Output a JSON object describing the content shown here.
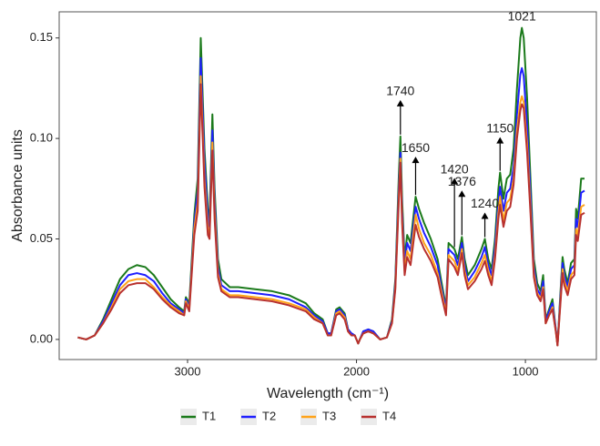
{
  "chart_data": {
    "type": "line",
    "x_label": "Wavelength (cm⁻¹)",
    "y_label": "Absorbance units",
    "x": [
      3650,
      3600,
      3550,
      3500,
      3450,
      3400,
      3350,
      3300,
      3250,
      3200,
      3150,
      3100,
      3050,
      3020,
      3010,
      2990,
      2960,
      2940,
      2922,
      2900,
      2880,
      2870,
      2853,
      2840,
      2820,
      2800,
      2750,
      2700,
      2600,
      2500,
      2400,
      2300,
      2250,
      2200,
      2170,
      2150,
      2120,
      2100,
      2070,
      2050,
      2030,
      2010,
      1990,
      1980,
      1960,
      1930,
      1900,
      1860,
      1820,
      1790,
      1770,
      1750,
      1740,
      1730,
      1715,
      1700,
      1680,
      1650,
      1630,
      1600,
      1560,
      1520,
      1500,
      1470,
      1455,
      1420,
      1400,
      1376,
      1360,
      1340,
      1300,
      1260,
      1240,
      1220,
      1200,
      1180,
      1160,
      1150,
      1130,
      1110,
      1090,
      1070,
      1050,
      1030,
      1021,
      1010,
      990,
      970,
      950,
      930,
      910,
      895,
      880,
      860,
      840,
      820,
      810,
      795,
      780,
      770,
      750,
      730,
      710,
      700,
      690,
      670,
      650
    ],
    "series": [
      {
        "name": "T1",
        "color": "#1b7a1b",
        "values": [
          0.001,
          0,
          0.002,
          0.01,
          0.02,
          0.03,
          0.035,
          0.037,
          0.036,
          0.032,
          0.026,
          0.02,
          0.016,
          0.014,
          0.021,
          0.018,
          0.062,
          0.08,
          0.15,
          0.095,
          0.065,
          0.06,
          0.112,
          0.075,
          0.04,
          0.03,
          0.026,
          0.026,
          0.025,
          0.024,
          0.022,
          0.018,
          0.013,
          0.01,
          0.003,
          0.003,
          0.015,
          0.016,
          0.013,
          0.005,
          0.003,
          0.002,
          -0.002,
          0,
          0.004,
          0.005,
          0.004,
          0,
          0.001,
          0.01,
          0.03,
          0.08,
          0.101,
          0.07,
          0.04,
          0.052,
          0.048,
          0.071,
          0.065,
          0.058,
          0.05,
          0.04,
          0.03,
          0.016,
          0.048,
          0.045,
          0.04,
          0.051,
          0.04,
          0.032,
          0.037,
          0.045,
          0.05,
          0.04,
          0.035,
          0.05,
          0.075,
          0.083,
          0.07,
          0.08,
          0.082,
          0.095,
          0.125,
          0.15,
          0.155,
          0.15,
          0.12,
          0.08,
          0.04,
          0.028,
          0.024,
          0.032,
          0.01,
          0.015,
          0.02,
          0.005,
          -0.003,
          0.02,
          0.041,
          0.035,
          0.028,
          0.038,
          0.04,
          0.065,
          0.06,
          0.08,
          0.08
        ]
      },
      {
        "name": "T2",
        "color": "#1f1fff",
        "values": [
          0.001,
          0,
          0.002,
          0.009,
          0.018,
          0.027,
          0.032,
          0.033,
          0.032,
          0.029,
          0.023,
          0.018,
          0.015,
          0.013,
          0.02,
          0.016,
          0.058,
          0.074,
          0.14,
          0.088,
          0.06,
          0.056,
          0.104,
          0.069,
          0.036,
          0.027,
          0.024,
          0.024,
          0.023,
          0.022,
          0.02,
          0.016,
          0.012,
          0.009,
          0.003,
          0.003,
          0.014,
          0.015,
          0.012,
          0.005,
          0.003,
          0.002,
          -0.002,
          0,
          0.004,
          0.005,
          0.004,
          0,
          0.001,
          0.009,
          0.028,
          0.074,
          0.093,
          0.064,
          0.037,
          0.048,
          0.044,
          0.066,
          0.06,
          0.053,
          0.046,
          0.037,
          0.027,
          0.015,
          0.045,
          0.042,
          0.037,
          0.048,
          0.037,
          0.029,
          0.034,
          0.041,
          0.046,
          0.037,
          0.032,
          0.046,
          0.068,
          0.076,
          0.064,
          0.073,
          0.075,
          0.086,
          0.112,
          0.132,
          0.135,
          0.131,
          0.106,
          0.072,
          0.036,
          0.025,
          0.022,
          0.029,
          0.009,
          0.014,
          0.018,
          0.005,
          -0.003,
          0.018,
          0.038,
          0.032,
          0.026,
          0.035,
          0.037,
          0.06,
          0.056,
          0.073,
          0.074
        ]
      },
      {
        "name": "T3",
        "color": "#ffa31a",
        "values": [
          0.001,
          0,
          0.002,
          0.008,
          0.016,
          0.025,
          0.029,
          0.03,
          0.03,
          0.026,
          0.021,
          0.017,
          0.014,
          0.012,
          0.019,
          0.015,
          0.055,
          0.068,
          0.131,
          0.08,
          0.055,
          0.052,
          0.098,
          0.064,
          0.033,
          0.025,
          0.022,
          0.022,
          0.021,
          0.02,
          0.018,
          0.015,
          0.011,
          0.008,
          0.002,
          0.002,
          0.013,
          0.014,
          0.011,
          0.004,
          0.002,
          0.002,
          -0.002,
          0,
          0.003,
          0.004,
          0.003,
          0,
          0.001,
          0.008,
          0.026,
          0.07,
          0.09,
          0.06,
          0.034,
          0.044,
          0.04,
          0.062,
          0.055,
          0.048,
          0.042,
          0.033,
          0.025,
          0.013,
          0.042,
          0.039,
          0.034,
          0.045,
          0.034,
          0.027,
          0.031,
          0.038,
          0.042,
          0.034,
          0.029,
          0.042,
          0.063,
          0.071,
          0.059,
          0.068,
          0.07,
          0.08,
          0.104,
          0.118,
          0.121,
          0.118,
          0.097,
          0.066,
          0.033,
          0.023,
          0.02,
          0.026,
          0.008,
          0.012,
          0.016,
          0.004,
          -0.003,
          0.016,
          0.035,
          0.029,
          0.024,
          0.032,
          0.034,
          0.055,
          0.052,
          0.066,
          0.067
        ]
      },
      {
        "name": "T4",
        "color": "#b8312f",
        "values": [
          0.001,
          0,
          0.002,
          0.008,
          0.015,
          0.023,
          0.027,
          0.028,
          0.028,
          0.025,
          0.02,
          0.016,
          0.013,
          0.012,
          0.018,
          0.014,
          0.052,
          0.064,
          0.127,
          0.076,
          0.052,
          0.05,
          0.094,
          0.06,
          0.031,
          0.024,
          0.021,
          0.021,
          0.02,
          0.019,
          0.017,
          0.014,
          0.01,
          0.008,
          0.002,
          0.002,
          0.012,
          0.013,
          0.01,
          0.004,
          0.002,
          0.002,
          -0.002,
          0,
          0.003,
          0.004,
          0.003,
          0,
          0.001,
          0.008,
          0.025,
          0.068,
          0.088,
          0.058,
          0.032,
          0.041,
          0.037,
          0.057,
          0.051,
          0.045,
          0.039,
          0.031,
          0.023,
          0.012,
          0.04,
          0.036,
          0.032,
          0.043,
          0.032,
          0.025,
          0.029,
          0.035,
          0.039,
          0.032,
          0.027,
          0.04,
          0.06,
          0.067,
          0.056,
          0.064,
          0.066,
          0.077,
          0.1,
          0.114,
          0.117,
          0.115,
          0.093,
          0.063,
          0.031,
          0.022,
          0.019,
          0.025,
          0.008,
          0.012,
          0.015,
          0.004,
          -0.003,
          0.015,
          0.033,
          0.027,
          0.022,
          0.03,
          0.032,
          0.052,
          0.049,
          0.062,
          0.063
        ]
      }
    ],
    "annotations": [
      1740,
      1650,
      1420,
      1376,
      1240,
      1150,
      1021
    ],
    "xlim": [
      3760,
      580
    ],
    "xticks": [
      3000,
      2000,
      1000
    ],
    "ylim": [
      -0.01,
      0.163
    ],
    "yticks": [
      {
        "value": 0,
        "label": "0.00"
      },
      0.05,
      {
        "value": 0.1,
        "label": "0.10"
      },
      0.15
    ],
    "grid": false,
    "legend": "bottom"
  }
}
